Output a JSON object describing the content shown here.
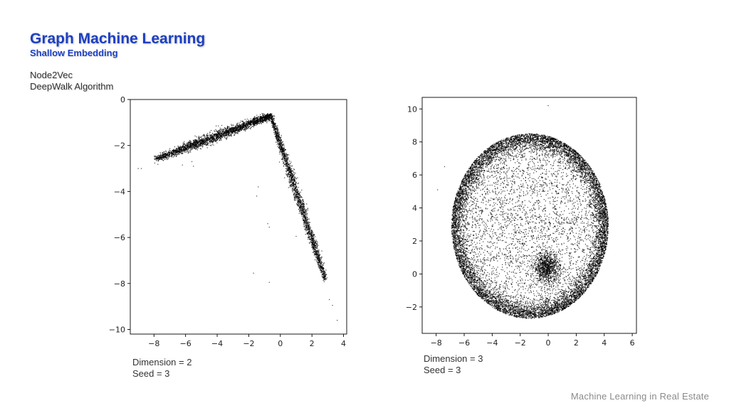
{
  "slide": {
    "title": "Graph Machine Learning",
    "subtitle": "Shallow Embedding",
    "algorithm_line1": "Node2Vec",
    "algorithm_line2": "DeepWalk Algorithm",
    "footer": "Machine Learning in Real Estate",
    "title_color": "#1d3fc2"
  },
  "captions": {
    "left_dimension": "Dimension = 2",
    "left_seed": "Seed = 3",
    "right_dimension": "Dimension = 3",
    "right_seed": "Seed = 3"
  },
  "chart_data": [
    {
      "type": "scatter",
      "xlim": [
        -9.5,
        4.2
      ],
      "ylim": [
        -10.2,
        0
      ],
      "xticks": [
        -8,
        -6,
        -4,
        -2,
        0,
        2,
        4
      ],
      "yticks": [
        0,
        -2,
        -4,
        -6,
        -8,
        -10
      ],
      "xtick_labels": [
        "−8",
        "−6",
        "−4",
        "−2",
        "0",
        "2",
        "4"
      ],
      "ytick_labels": [
        "0",
        "−2",
        "−4",
        "−6",
        "−8",
        "−10"
      ],
      "grid": false,
      "point_color": "#000000",
      "description_shape": "two dense linear arms meeting near (-0.6, -0.7)",
      "arms": [
        {
          "from": [
            -7.9,
            -2.6
          ],
          "to": [
            -0.6,
            -0.7
          ],
          "points": 2600
        },
        {
          "from": [
            -0.6,
            -0.7
          ],
          "to": [
            2.85,
            -7.8
          ],
          "points": 2000
        }
      ],
      "outliers": [
        {
          "x": -9.0,
          "y": -3.0
        },
        {
          "x": -8.8,
          "y": -3.0
        },
        {
          "x": -1.4,
          "y": -3.8
        },
        {
          "x": -1.5,
          "y": -4.2
        },
        {
          "x": -0.8,
          "y": -5.4
        },
        {
          "x": -0.7,
          "y": -5.55
        },
        {
          "x": 1.0,
          "y": -5.95
        },
        {
          "x": -1.7,
          "y": -7.55
        },
        {
          "x": -0.7,
          "y": -7.95
        },
        {
          "x": 3.1,
          "y": -8.7
        },
        {
          "x": 3.3,
          "y": -8.95
        },
        {
          "x": 3.6,
          "y": -9.6
        },
        {
          "x": -6.2,
          "y": -2.85
        },
        {
          "x": -5.5,
          "y": -2.9
        },
        {
          "x": -5.6,
          "y": -2.7
        }
      ]
    },
    {
      "type": "scatter",
      "xlim": [
        -9,
        6.3
      ],
      "ylim": [
        -3.6,
        10.7
      ],
      "xticks": [
        -8,
        -6,
        -4,
        -2,
        0,
        2,
        4,
        6
      ],
      "yticks": [
        -2,
        0,
        2,
        4,
        6,
        8,
        10
      ],
      "xtick_labels": [
        "−8",
        "−6",
        "−4",
        "−2",
        "0",
        "2",
        "4",
        "6"
      ],
      "ytick_labels": [
        "−2",
        "0",
        "2",
        "4",
        "6",
        "8",
        "10"
      ],
      "grid": false,
      "point_color": "#000000",
      "ring": {
        "center": [
          -1.3,
          2.9
        ],
        "radius": 5.6,
        "points": 9000
      },
      "interior_points": 3500,
      "cluster": {
        "center": [
          -0.1,
          0.4
        ],
        "spread": 0.45,
        "points": 900
      },
      "outliers": [
        {
          "x": 0.0,
          "y": 10.2
        },
        {
          "x": -7.9,
          "y": 5.1
        },
        {
          "x": -7.4,
          "y": 6.5
        }
      ]
    }
  ]
}
